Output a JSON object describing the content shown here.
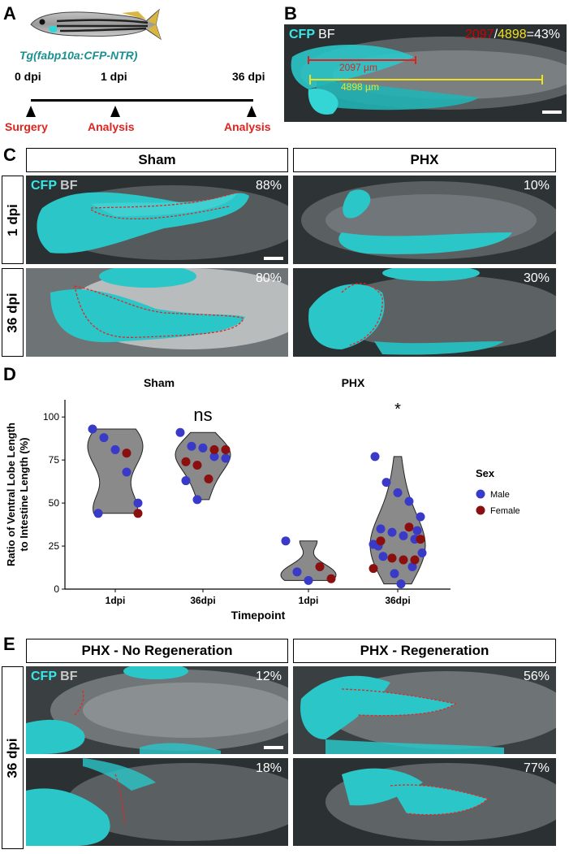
{
  "panels": {
    "A": {
      "letter": "A",
      "transgene": "Tg(fabp10a:CFP-NTR)",
      "timepoints": [
        {
          "label": "0 dpi",
          "event": "Surgery"
        },
        {
          "label": "1 dpi",
          "event": "Analysis"
        },
        {
          "label": "36 dpi",
          "event": "Analysis"
        }
      ]
    },
    "B": {
      "letter": "B",
      "channel_cfp": "CFP",
      "channel_bf": "BF",
      "ratio_num": "2097",
      "ratio_slash": "/",
      "ratio_den": "4898",
      "ratio_pct": "=43%",
      "measure_red": "2097 µm",
      "measure_yellow": "4898 µm"
    },
    "C": {
      "letter": "C",
      "col_headers": [
        "Sham",
        "PHX"
      ],
      "row_labels": [
        "1 dpi",
        "36 dpi"
      ],
      "channel_cfp": "CFP",
      "channel_bf": "BF",
      "percents": [
        "88%",
        "10%",
        "80%",
        "30%"
      ]
    },
    "D": {
      "letter": "D"
    },
    "E": {
      "letter": "E",
      "col_headers": [
        "PHX - No Regeneration",
        "PHX - Regeneration"
      ],
      "row_label": "36 dpi",
      "channel_cfp": "CFP",
      "channel_bf": "BF",
      "percents": [
        "12%",
        "56%",
        "18%",
        "77%"
      ]
    }
  },
  "chart_data": {
    "type": "violin",
    "facets": [
      "Sham",
      "PHX"
    ],
    "categories": [
      "1dpi",
      "36dpi"
    ],
    "xlabel": "Timepoint",
    "ylabel": "Ratio of Ventral Lobe Length to Intestine Length (%)",
    "ylabel_lines": [
      "Ratio of Ventral Lobe Length",
      "to Intestine Length (%)"
    ],
    "yticks": [
      0,
      25,
      50,
      75,
      100
    ],
    "ylim": [
      0,
      110
    ],
    "significance": {
      "Sham": "ns",
      "PHX": "*"
    },
    "legend": {
      "title": "Sex",
      "items": [
        {
          "name": "Male",
          "color": "#3a3ac8"
        },
        {
          "name": "Female",
          "color": "#8b0f0f"
        }
      ],
      "placement": "right"
    },
    "violin_color": "#8a8a8a",
    "series": [
      {
        "facet": "Sham",
        "timepoint": "1dpi",
        "male": [
          93,
          88,
          81,
          68,
          50,
          44
        ],
        "female": [
          79,
          44
        ]
      },
      {
        "facet": "Sham",
        "timepoint": "36dpi",
        "male": [
          91,
          83,
          82,
          77,
          76,
          63,
          52
        ],
        "female": [
          81,
          81,
          74,
          72,
          64
        ]
      },
      {
        "facet": "PHX",
        "timepoint": "1dpi",
        "male": [
          28,
          10,
          5
        ],
        "female": [
          13,
          6
        ]
      },
      {
        "facet": "PHX",
        "timepoint": "36dpi",
        "male": [
          77,
          62,
          56,
          51,
          42,
          35,
          33,
          31,
          29,
          26,
          21,
          19,
          13,
          9,
          3,
          25,
          34
        ],
        "female": [
          36,
          29,
          28,
          18,
          17,
          17,
          12
        ]
      }
    ]
  }
}
